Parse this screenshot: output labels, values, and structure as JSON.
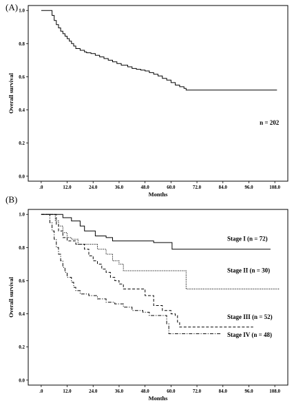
{
  "chart_data": [
    {
      "type": "line",
      "panel_label": "(A)",
      "xlabel": "Months",
      "ylabel": "Overall survival",
      "xlim": [
        -6,
        114
      ],
      "ylim": [
        -0.03,
        1.03
      ],
      "x_ticks": [
        0,
        12,
        24,
        36,
        48,
        60,
        72,
        84,
        96,
        108
      ],
      "x_tick_labels": [
        ".0",
        "12.0",
        "24.0",
        "36.0",
        "48.0",
        "60.0",
        "72.0",
        "84.0",
        "96.0",
        "108.0"
      ],
      "y_ticks": [
        0,
        0.2,
        0.4,
        0.6,
        0.8,
        1.0
      ],
      "y_tick_labels": [
        "0.0",
        "0.2",
        "0.4",
        "0.6",
        "0.8",
        "1.0"
      ],
      "annotations": [
        {
          "text": "n = 202",
          "x": 101,
          "y": 0.31
        }
      ],
      "series": [
        {
          "style": "solid",
          "points": [
            [
              0,
              1.0
            ],
            [
              4,
              1.0
            ],
            [
              5,
              0.97
            ],
            [
              6,
              0.94
            ],
            [
              7,
              0.915
            ],
            [
              8,
              0.895
            ],
            [
              9,
              0.875
            ],
            [
              10,
              0.86
            ],
            [
              11,
              0.845
            ],
            [
              12,
              0.83
            ],
            [
              13,
              0.815
            ],
            [
              14,
              0.8
            ],
            [
              15,
              0.785
            ],
            [
              16,
              0.77
            ],
            [
              18,
              0.76
            ],
            [
              20,
              0.75
            ],
            [
              21,
              0.745
            ],
            [
              23,
              0.74
            ],
            [
              25,
              0.73
            ],
            [
              27,
              0.72
            ],
            [
              29,
              0.71
            ],
            [
              31,
              0.7
            ],
            [
              33,
              0.69
            ],
            [
              35,
              0.68
            ],
            [
              37,
              0.67
            ],
            [
              40,
              0.66
            ],
            [
              42,
              0.65
            ],
            [
              44,
              0.645
            ],
            [
              46,
              0.64
            ],
            [
              48,
              0.635
            ],
            [
              50,
              0.625
            ],
            [
              52,
              0.615
            ],
            [
              54,
              0.605
            ],
            [
              56,
              0.59
            ],
            [
              58,
              0.58
            ],
            [
              60,
              0.565
            ],
            [
              62,
              0.55
            ],
            [
              64,
              0.54
            ],
            [
              66,
              0.53
            ],
            [
              67,
              0.52
            ],
            [
              109,
              0.52
            ]
          ]
        }
      ]
    },
    {
      "type": "line",
      "panel_label": "(B)",
      "xlabel": "Months",
      "ylabel": "Overall survival",
      "xlim": [
        -6,
        114
      ],
      "ylim": [
        -0.03,
        1.03
      ],
      "x_ticks": [
        0,
        12,
        24,
        36,
        48,
        60,
        72,
        84,
        96,
        108
      ],
      "x_tick_labels": [
        ".0",
        "12.0",
        "24.0",
        "36.0",
        "48.0",
        "60.0",
        "72.0",
        "84.0",
        "96.0",
        "108.0"
      ],
      "y_ticks": [
        0,
        0.2,
        0.4,
        0.6,
        0.8,
        1.0
      ],
      "y_tick_labels": [
        "0.0",
        "0.2",
        "0.4",
        "0.6",
        "0.8",
        "1.0"
      ],
      "series": [
        {
          "name": "Stage I (n = 72)",
          "style": "solid",
          "label_pos": [
            86,
            0.84
          ],
          "points": [
            [
              0,
              1.0
            ],
            [
              9,
              1.0
            ],
            [
              10,
              0.98
            ],
            [
              14,
              0.96
            ],
            [
              18,
              0.93
            ],
            [
              20,
              0.9
            ],
            [
              25,
              0.87
            ],
            [
              30,
              0.86
            ],
            [
              33,
              0.84
            ],
            [
              45,
              0.84
            ],
            [
              52,
              0.83
            ],
            [
              60,
              0.83
            ],
            [
              60.5,
              0.79
            ],
            [
              106,
              0.79
            ]
          ]
        },
        {
          "name": "Stage II (n = 30)",
          "style": "dotted",
          "label_pos": [
            86,
            0.65
          ],
          "points": [
            [
              0,
              1.0
            ],
            [
              6,
              1.0
            ],
            [
              6.5,
              0.96
            ],
            [
              8,
              0.93
            ],
            [
              10,
              0.89
            ],
            [
              12,
              0.86
            ],
            [
              14,
              0.85
            ],
            [
              17,
              0.82
            ],
            [
              25,
              0.82
            ],
            [
              26,
              0.79
            ],
            [
              30,
              0.76
            ],
            [
              33,
              0.72
            ],
            [
              36,
              0.7
            ],
            [
              38,
              0.66
            ],
            [
              48,
              0.66
            ],
            [
              60,
              0.66
            ],
            [
              66,
              0.66
            ],
            [
              67,
              0.55
            ],
            [
              110,
              0.55
            ]
          ]
        },
        {
          "name": "Stage III (n = 52)",
          "style": "dashed",
          "label_pos": [
            86,
            0.37
          ],
          "points": [
            [
              0,
              1.0
            ],
            [
              6,
              1.0
            ],
            [
              7,
              0.94
            ],
            [
              8,
              0.9
            ],
            [
              10,
              0.86
            ],
            [
              12,
              0.84
            ],
            [
              16,
              0.82
            ],
            [
              20,
              0.79
            ],
            [
              22,
              0.75
            ],
            [
              24,
              0.72
            ],
            [
              26,
              0.7
            ],
            [
              28,
              0.67
            ],
            [
              30,
              0.65
            ],
            [
              32,
              0.62
            ],
            [
              34,
              0.6
            ],
            [
              36,
              0.58
            ],
            [
              38,
              0.55
            ],
            [
              45,
              0.55
            ],
            [
              48,
              0.51
            ],
            [
              52,
              0.45
            ],
            [
              56,
              0.42
            ],
            [
              60,
              0.4
            ],
            [
              62,
              0.39
            ],
            [
              63,
              0.35
            ],
            [
              64,
              0.32
            ],
            [
              98,
              0.32
            ]
          ]
        },
        {
          "name": "Stage IV (n = 48)",
          "style": "dashdot",
          "label_pos": [
            86,
            0.26
          ],
          "points": [
            [
              0,
              1.0
            ],
            [
              3,
              1.0
            ],
            [
              4,
              0.95
            ],
            [
              5,
              0.9
            ],
            [
              6,
              0.85
            ],
            [
              7,
              0.8
            ],
            [
              8,
              0.76
            ],
            [
              9,
              0.72
            ],
            [
              10,
              0.68
            ],
            [
              11,
              0.65
            ],
            [
              12,
              0.62
            ],
            [
              14,
              0.59
            ],
            [
              15,
              0.56
            ],
            [
              16,
              0.54
            ],
            [
              18,
              0.52
            ],
            [
              22,
              0.51
            ],
            [
              26,
              0.49
            ],
            [
              30,
              0.47
            ],
            [
              34,
              0.46
            ],
            [
              38,
              0.44
            ],
            [
              42,
              0.42
            ],
            [
              47,
              0.41
            ],
            [
              50,
              0.39
            ],
            [
              56,
              0.39
            ],
            [
              58,
              0.34
            ],
            [
              59,
              0.28
            ],
            [
              70,
              0.28
            ],
            [
              83,
              0.28
            ]
          ]
        }
      ]
    }
  ]
}
